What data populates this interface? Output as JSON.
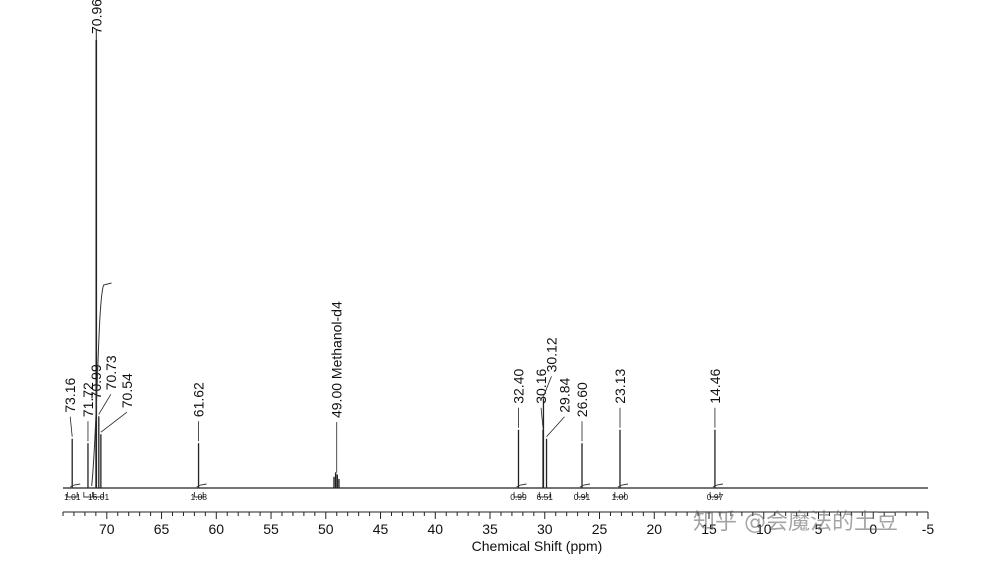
{
  "header_fragment": "",
  "header_fragment_right": "",
  "watermark": "知乎 @会魔法的土豆",
  "chart_data": {
    "type": "line",
    "title": "",
    "xlabel": "Chemical Shift (ppm)",
    "ylabel": "",
    "xlim": [
      74,
      -5
    ],
    "xticks": [
      70,
      65,
      60,
      55,
      50,
      45,
      40,
      35,
      30,
      25,
      20,
      15,
      10,
      5,
      0,
      -5
    ],
    "xtick_labels": [
      "70",
      "65",
      "60",
      "55",
      "50",
      "45",
      "40",
      "35",
      "30",
      "25",
      "20",
      "15",
      "10",
      "5",
      "0",
      "-5"
    ],
    "grid": false,
    "peaks": [
      {
        "ppm": 73.16,
        "label": "73.16",
        "height": 0.11
      },
      {
        "ppm": 71.72,
        "label": "71.72",
        "height": 0.1
      },
      {
        "ppm": 70.99,
        "label": "70.99",
        "height": 0.14
      },
      {
        "ppm": 70.96,
        "label": "70.96",
        "height": 1.0
      },
      {
        "ppm": 70.73,
        "label": "70.73",
        "height": 0.16
      },
      {
        "ppm": 70.54,
        "label": "70.54",
        "height": 0.12
      },
      {
        "ppm": 61.62,
        "label": "61.62",
        "height": 0.1
      },
      {
        "ppm": 49.0,
        "label": "49.00 Methanol-d4",
        "height": 0.03
      },
      {
        "ppm": 32.4,
        "label": "32.40",
        "height": 0.13
      },
      {
        "ppm": 30.16,
        "label": "30.16",
        "height": 0.13
      },
      {
        "ppm": 30.12,
        "label": "30.12",
        "height": 0.2
      },
      {
        "ppm": 29.84,
        "label": "29.84",
        "height": 0.11
      },
      {
        "ppm": 26.6,
        "label": "26.60",
        "height": 0.1
      },
      {
        "ppm": 23.13,
        "label": "23.13",
        "height": 0.13
      },
      {
        "ppm": 14.46,
        "label": "14.46",
        "height": 0.13
      }
    ],
    "integrations": [
      {
        "from": 73.6,
        "to": 72.7,
        "value": "1.01"
      },
      {
        "from": 72.1,
        "to": 71.3,
        "value": ""
      },
      {
        "from": 71.2,
        "to": 70.3,
        "value": "16.01"
      },
      {
        "from": 62.0,
        "to": 61.2,
        "value": "1.08"
      },
      {
        "from": 32.8,
        "to": 32.0,
        "value": "0.99"
      },
      {
        "from": 30.5,
        "to": 29.5,
        "value": "6.51"
      },
      {
        "from": 27.0,
        "to": 26.2,
        "value": "0.91"
      },
      {
        "from": 23.6,
        "to": 22.7,
        "value": "1.00"
      },
      {
        "from": 14.9,
        "to": 14.0,
        "value": "0.97"
      }
    ]
  }
}
